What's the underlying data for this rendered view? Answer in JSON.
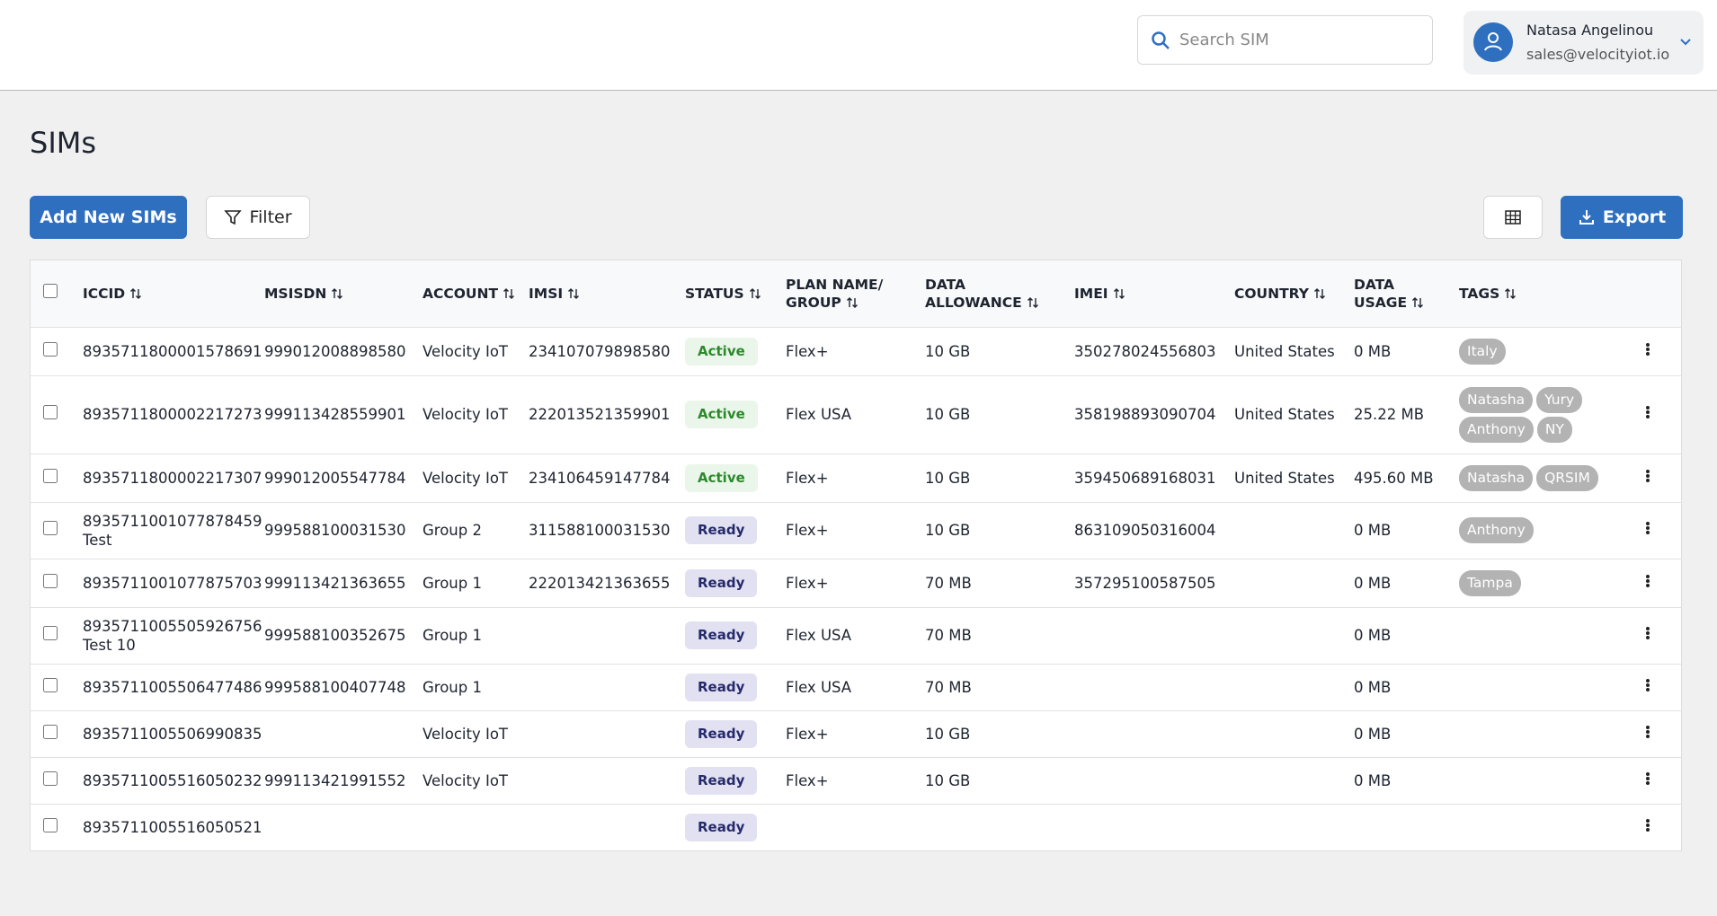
{
  "header": {
    "search_placeholder": "Search SIM",
    "user_name": "Natasa Angelinou",
    "user_email": "sales@velocityiot.io"
  },
  "page": {
    "title": "SIMs",
    "add_button": "Add New SIMs",
    "filter_button": "Filter",
    "export_button": "Export"
  },
  "table": {
    "columns": [
      {
        "key": "iccid",
        "label": "ICCID"
      },
      {
        "key": "msisdn",
        "label": "MSISDN"
      },
      {
        "key": "account",
        "label": "ACCOUNT"
      },
      {
        "key": "imsi",
        "label": "IMSI"
      },
      {
        "key": "status",
        "label": "STATUS"
      },
      {
        "key": "plan",
        "label": "PLAN NAME/ GROUP"
      },
      {
        "key": "allowance",
        "label": "DATA ALLOWANCE"
      },
      {
        "key": "imei",
        "label": "IMEI"
      },
      {
        "key": "country",
        "label": "COUNTRY"
      },
      {
        "key": "usage",
        "label": "DATA USAGE"
      },
      {
        "key": "tags",
        "label": "TAGS"
      }
    ],
    "rows": [
      {
        "iccid": "8935711800001578691",
        "msisdn": "999012008898580",
        "account": "Velocity IoT",
        "imsi": "234107079898580",
        "status": "Active",
        "plan": "Flex+",
        "allowance": "10 GB",
        "imei": "350278024556803",
        "country": "United States",
        "usage": "0 MB",
        "tags": [
          "Italy"
        ]
      },
      {
        "iccid": "8935711800002217273",
        "msisdn": "999113428559901",
        "account": "Velocity IoT",
        "imsi": "222013521359901",
        "status": "Active",
        "plan": "Flex USA",
        "allowance": "10 GB",
        "imei": "358198893090704",
        "country": "United States",
        "usage": "25.22 MB",
        "tags": [
          "Natasha",
          "Yury",
          "Anthony",
          "NY"
        ]
      },
      {
        "iccid": "8935711800002217307",
        "msisdn": "999012005547784",
        "account": "Velocity IoT",
        "imsi": "234106459147784",
        "status": "Active",
        "plan": "Flex+",
        "allowance": "10 GB",
        "imei": "359450689168031",
        "country": "United States",
        "usage": "495.60 MB",
        "tags": [
          "Natasha",
          "QRSIM"
        ]
      },
      {
        "iccid": "8935711001077878459",
        "note": "Test",
        "msisdn": "999588100031530",
        "account": "Group 2",
        "imsi": "311588100031530",
        "status": "Ready",
        "plan": "Flex+",
        "allowance": "10 GB",
        "imei": "863109050316004",
        "usage": "0 MB",
        "tags": [
          "Anthony"
        ]
      },
      {
        "iccid": "8935711001077875703",
        "msisdn": "999113421363655",
        "account": "Group 1",
        "imsi": "222013421363655",
        "status": "Ready",
        "plan": "Flex+",
        "allowance": "70 MB",
        "imei": "357295100587505",
        "usage": "0 MB",
        "tags": [
          "Tampa"
        ]
      },
      {
        "iccid": "8935711005505926756",
        "note": "Test 10",
        "msisdn": "999588100352675",
        "account": "Group 1",
        "status": "Ready",
        "plan": "Flex USA",
        "allowance": "70 MB",
        "usage": "0 MB"
      },
      {
        "iccid": "8935711005506477486",
        "msisdn": "999588100407748",
        "account": "Group 1",
        "status": "Ready",
        "plan": "Flex USA",
        "allowance": "70 MB",
        "usage": "0 MB"
      },
      {
        "iccid": "8935711005506990835",
        "account": "Velocity IoT",
        "status": "Ready",
        "plan": "Flex+",
        "allowance": "10 GB",
        "usage": "0 MB"
      },
      {
        "iccid": "8935711005516050232",
        "msisdn": "999113421991552",
        "account": "Velocity IoT",
        "status": "Ready",
        "plan": "Flex+",
        "allowance": "10 GB",
        "usage": "0 MB"
      },
      {
        "iccid": "8935711005516050521",
        "status": "Ready"
      }
    ]
  }
}
